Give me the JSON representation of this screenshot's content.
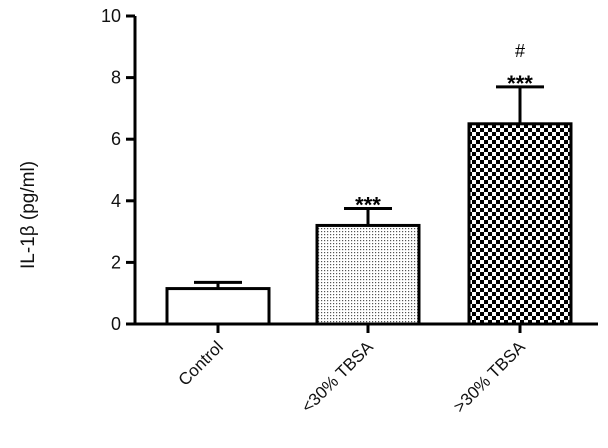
{
  "chart_data": {
    "type": "bar",
    "ylabel": "IL-1β (pg/ml)",
    "xlabel": "",
    "ylim": [
      0,
      10
    ],
    "yticks": [
      0,
      2,
      4,
      6,
      8,
      10
    ],
    "categories": [
      "Control",
      "<30% TBSA",
      ">30% TBSA"
    ],
    "values": [
      1.15,
      3.2,
      6.5
    ],
    "errors": [
      0.2,
      0.55,
      1.2
    ],
    "patterns": [
      "none",
      "fine-dots",
      "checkerboard"
    ],
    "annotations": [
      {
        "category": "<30% TBSA",
        "lines": [
          "***"
        ]
      },
      {
        "category": ">30% TBSA",
        "lines": [
          "#",
          "***"
        ]
      }
    ],
    "grid": false,
    "colors": {
      "bar_stroke": "#000000",
      "bar_fill": "#ffffff",
      "pattern": "#000000"
    }
  }
}
